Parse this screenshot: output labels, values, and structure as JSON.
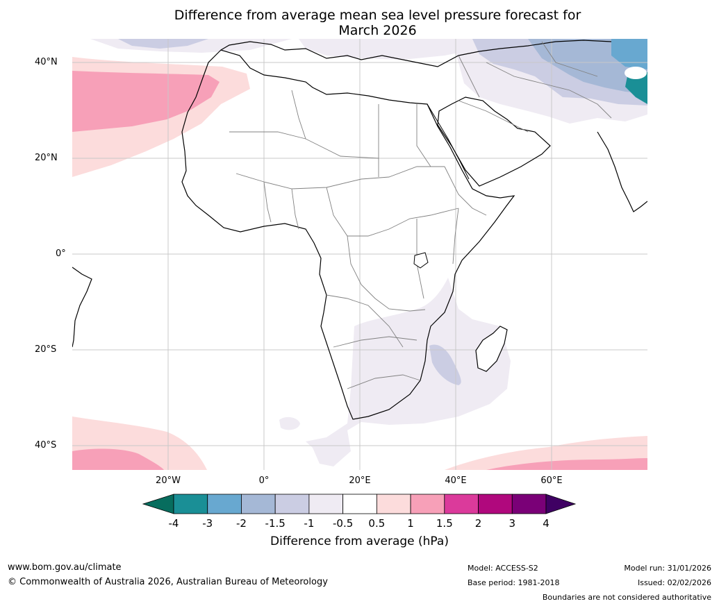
{
  "title_line1": "Difference from average mean sea level pressure forecast for",
  "title_line2": "March 2026",
  "lat_labels": [
    "40°N",
    "20°N",
    "0°",
    "20°S",
    "40°S"
  ],
  "lon_labels": [
    "20°W",
    "0°",
    "20°E",
    "40°E",
    "60°E"
  ],
  "legend": {
    "ticks": [
      "-4",
      "-3",
      "-2",
      "-1.5",
      "-1",
      "-0.5",
      "0.5",
      "1",
      "1.5",
      "2",
      "3",
      "4"
    ],
    "colors": [
      "#076d5e",
      "#1a8f96",
      "#68a8d0",
      "#a5b8d6",
      "#cbcde3",
      "#efebf3",
      "#ffffff",
      "#fcdcdc",
      "#f7a0b8",
      "#db3a9b",
      "#b0087d",
      "#7a0077",
      "#3f0063"
    ],
    "label": "Difference from average (hPa)"
  },
  "footer": {
    "website": "www.bom.gov.au/climate",
    "copyright": "© Commonwealth of Australia 2026, Australian Bureau of Meteorology",
    "model": "Model: ACCESS-S2",
    "base_period": "Base period: 1981-2018",
    "model_run": "Model run: 31/01/2026",
    "issued": "Issued: 02/02/2026",
    "disclaimer": "Boundaries are not considered authoritative"
  }
}
